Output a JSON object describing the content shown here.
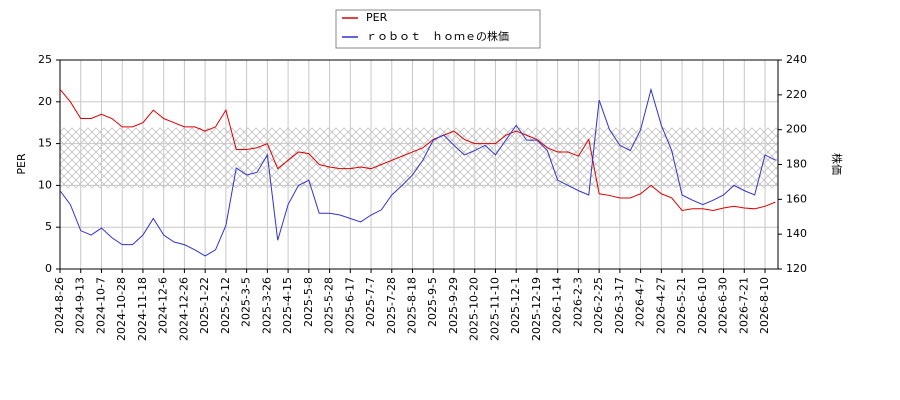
{
  "chart_data": {
    "type": "line",
    "categories": [
      "2024-8-26",
      null,
      "2024-9-13",
      null,
      "2024-10-7",
      null,
      "2024-10-28",
      null,
      "2024-11-18",
      null,
      "2024-12-6",
      null,
      "2024-12-26",
      null,
      "2025-1-22",
      null,
      "2025-2-12",
      null,
      "2025-3-5",
      null,
      "2025-3-26",
      null,
      "2025-4-15",
      null,
      "2025-5-8",
      null,
      "2025-5-28",
      null,
      "2025-6-17",
      null,
      "2025-7-7",
      null,
      "2025-7-28",
      null,
      "2025-8-18",
      null,
      "2025-9-5",
      null,
      "2025-9-29",
      null,
      "2025-10-20",
      null,
      "2025-11-10",
      null,
      "2025-12-1",
      null,
      "2025-12-19",
      null,
      "2026-1-14",
      null,
      "2026-2-3",
      null,
      "2026-2-25",
      null,
      "2026-3-17",
      null,
      "2026-4-7",
      null,
      "2026-4-27",
      null,
      "2026-5-21",
      null,
      "2026-6-10",
      null,
      "2026-6-30",
      null,
      "2026-7-21",
      null,
      "2026-8-10",
      null
    ],
    "series": [
      {
        "name": "PER",
        "color": "#dd0000",
        "axis": "y",
        "values": [
          21.5,
          20,
          18,
          18,
          18.5,
          18,
          17,
          17,
          17.5,
          19,
          18,
          17.5,
          17,
          17,
          16.5,
          17,
          19,
          14.3,
          14.3,
          14.5,
          15,
          12,
          13,
          14,
          13.8,
          12.5,
          12.2,
          12,
          12,
          12.2,
          12,
          12.5,
          13,
          13.5,
          14,
          14.5,
          15.5,
          16,
          16.5,
          15.5,
          15,
          15,
          15,
          16,
          16.5,
          16,
          15.5,
          14.5,
          14,
          14,
          13.5,
          15.5,
          9,
          8.8,
          8.5,
          8.5,
          9,
          10,
          9,
          8.5,
          7,
          7.2,
          7.2,
          7,
          7.3,
          7.5,
          7.3,
          7.2,
          7.5,
          8
        ]
      },
      {
        "name": "ｒｏｂｏｔ　ｈｏｍｅの株価",
        "color": "#3333cc",
        "axis": "y2",
        "values": [
          165,
          157,
          142,
          139.5,
          143.5,
          138,
          134,
          134,
          139.5,
          149,
          139.5,
          135.5,
          134,
          131,
          127.5,
          131,
          145,
          178,
          174,
          175.5,
          185.5,
          136.5,
          157,
          168,
          171,
          152,
          152,
          151,
          149,
          147,
          151,
          154,
          162.5,
          168,
          174,
          182.5,
          194,
          197,
          191,
          185.5,
          188,
          191,
          185.5,
          194,
          202.5,
          194,
          194,
          188,
          171,
          168,
          165,
          162.5,
          217,
          200,
          191,
          188,
          200,
          223,
          202.5,
          188,
          162.5,
          159.5,
          157,
          159.5,
          162.5,
          168,
          165,
          162.5,
          185.5,
          182.5
        ]
      }
    ],
    "y_label": "PER",
    "y2_label": "株価",
    "ylim": [
      0,
      25
    ],
    "yticks": [
      0,
      5,
      10,
      15,
      20,
      25
    ],
    "y2lim": [
      120,
      240
    ],
    "y2ticks": [
      120,
      140,
      160,
      180,
      200,
      220,
      240
    ],
    "shaded_range": [
      9.7,
      16.9
    ],
    "grid": true
  }
}
